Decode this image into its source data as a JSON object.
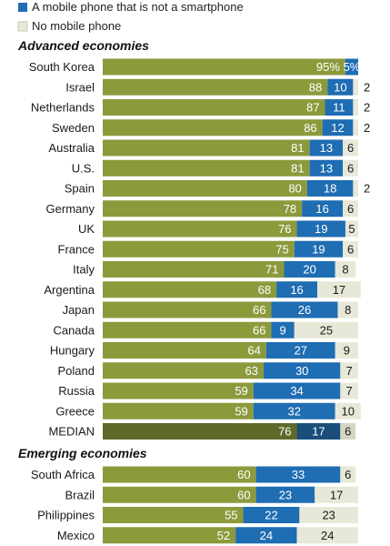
{
  "chart_data": {
    "type": "bar",
    "stacked": true,
    "orientation": "horizontal",
    "legend": [
      {
        "name": "A mobile phone that is not a smartphone",
        "color": "#1f6db3"
      },
      {
        "name": "No mobile phone",
        "color": "#e8e8d8"
      }
    ],
    "series_colors": [
      "#8c9a3c",
      "#1f6db3",
      "#e8e8d8"
    ],
    "median_colors": [
      "#5d6a2a",
      "#1a4d7a",
      "#d6d6c4"
    ],
    "groups": [
      {
        "title": "Advanced economies",
        "rows": [
          {
            "label": "South Korea",
            "values": [
              95,
              5,
              0
            ],
            "labels": [
              "95%",
              "5%",
              ""
            ]
          },
          {
            "label": "Israel",
            "values": [
              88,
              10,
              2
            ],
            "labels": [
              "88",
              "10",
              "2"
            ]
          },
          {
            "label": "Netherlands",
            "values": [
              87,
              11,
              2
            ],
            "labels": [
              "87",
              "11",
              "2"
            ]
          },
          {
            "label": "Sweden",
            "values": [
              86,
              12,
              2
            ],
            "labels": [
              "86",
              "12",
              "2"
            ]
          },
          {
            "label": "Australia",
            "values": [
              81,
              13,
              6
            ],
            "labels": [
              "81",
              "13",
              "6"
            ]
          },
          {
            "label": "U.S.",
            "values": [
              81,
              13,
              6
            ],
            "labels": [
              "81",
              "13",
              "6"
            ]
          },
          {
            "label": "Spain",
            "values": [
              80,
              18,
              2
            ],
            "labels": [
              "80",
              "18",
              "2"
            ]
          },
          {
            "label": "Germany",
            "values": [
              78,
              16,
              6
            ],
            "labels": [
              "78",
              "16",
              "6"
            ]
          },
          {
            "label": "UK",
            "values": [
              76,
              19,
              5
            ],
            "labels": [
              "76",
              "19",
              "5"
            ]
          },
          {
            "label": "France",
            "values": [
              75,
              19,
              6
            ],
            "labels": [
              "75",
              "19",
              "6"
            ]
          },
          {
            "label": "Italy",
            "values": [
              71,
              20,
              8
            ],
            "labels": [
              "71",
              "20",
              "8"
            ]
          },
          {
            "label": "Argentina",
            "values": [
              68,
              16,
              17
            ],
            "labels": [
              "68",
              "16",
              "17"
            ]
          },
          {
            "label": "Japan",
            "values": [
              66,
              26,
              8
            ],
            "labels": [
              "66",
              "26",
              "8"
            ]
          },
          {
            "label": "Canada",
            "values": [
              66,
              9,
              25
            ],
            "labels": [
              "66",
              "9",
              "25"
            ]
          },
          {
            "label": "Hungary",
            "values": [
              64,
              27,
              9
            ],
            "labels": [
              "64",
              "27",
              "9"
            ]
          },
          {
            "label": "Poland",
            "values": [
              63,
              30,
              7
            ],
            "labels": [
              "63",
              "30",
              "7"
            ]
          },
          {
            "label": "Russia",
            "values": [
              59,
              34,
              7
            ],
            "labels": [
              "59",
              "34",
              "7"
            ]
          },
          {
            "label": "Greece",
            "values": [
              59,
              32,
              10
            ],
            "labels": [
              "59",
              "32",
              "10"
            ]
          },
          {
            "label": "MEDIAN",
            "values": [
              76,
              17,
              6
            ],
            "labels": [
              "76",
              "17",
              "6"
            ],
            "median": true
          }
        ]
      },
      {
        "title": "Emerging economies",
        "rows": [
          {
            "label": "South Africa",
            "values": [
              60,
              33,
              6
            ],
            "labels": [
              "60",
              "33",
              "6"
            ]
          },
          {
            "label": "Brazil",
            "values": [
              60,
              23,
              17
            ],
            "labels": [
              "60",
              "23",
              "17"
            ]
          },
          {
            "label": "Philippines",
            "values": [
              55,
              22,
              23
            ],
            "labels": [
              "55",
              "22",
              "23"
            ]
          },
          {
            "label": "Mexico",
            "values": [
              52,
              24,
              24
            ],
            "labels": [
              "52",
              "24",
              "24"
            ]
          }
        ]
      }
    ]
  }
}
